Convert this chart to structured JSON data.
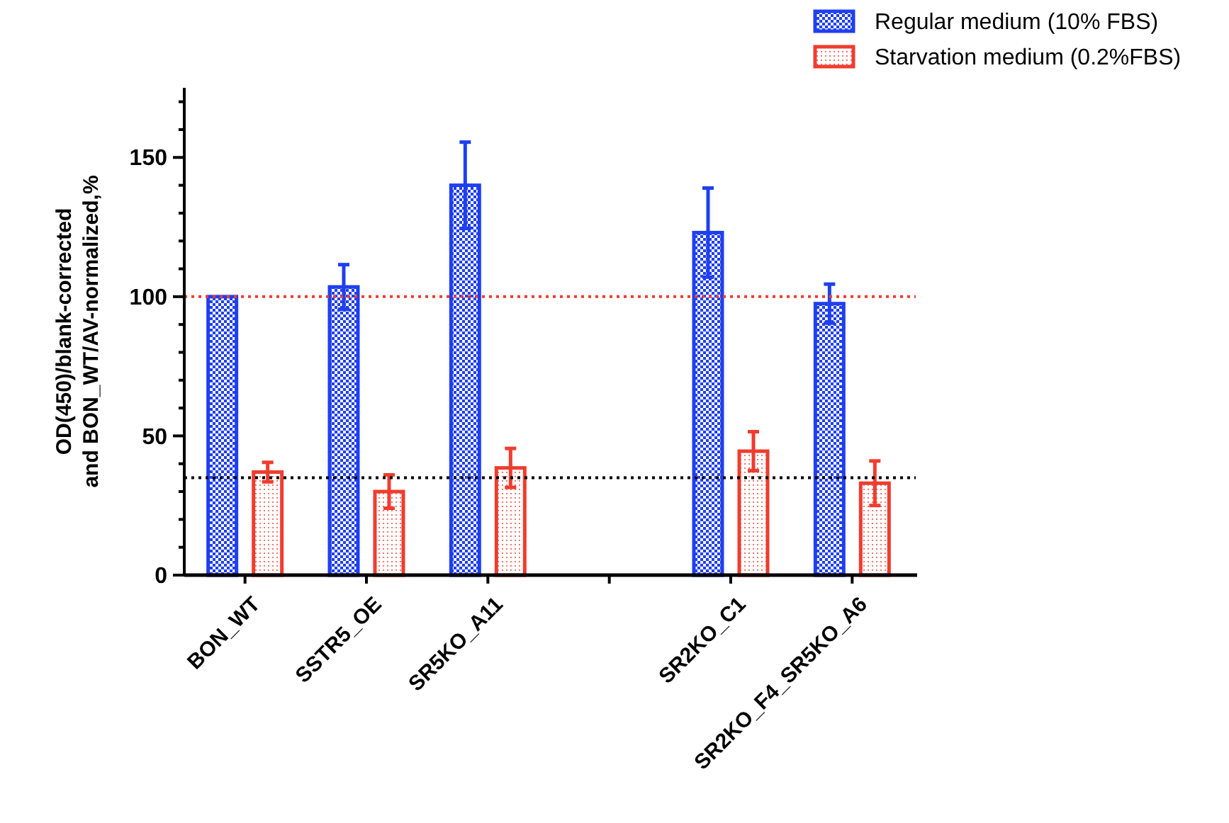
{
  "chart_data": {
    "type": "bar",
    "ylabel": "OD(450)/blank-corrected\nand BON_WT/AV-normalized,%",
    "categories": [
      "BON_WT",
      "SSTR5_OE",
      "SR5KO_A11",
      null,
      "SR2KO_C1",
      "SR2KO_F4_SR5KO_A6"
    ],
    "series": [
      {
        "name": "Regular medium (10% FBS)",
        "color": "#1f3ff0",
        "values": [
          100,
          103.5,
          140,
          null,
          123,
          97.5
        ],
        "errors": [
          null,
          8,
          15.5,
          null,
          16,
          7
        ]
      },
      {
        "name": "Starvation medium (0.2%FBS)",
        "color": "#f03c2e",
        "values": [
          37,
          30,
          38.5,
          null,
          44.5,
          33
        ],
        "errors": [
          3.5,
          6,
          7,
          null,
          7,
          8
        ]
      }
    ],
    "ylim": [
      0,
      175
    ],
    "yticks": [
      0,
      {
        "value": 10,
        "label": null
      },
      {
        "value": 20,
        "label": null
      },
      {
        "value": 30,
        "label": null
      },
      {
        "value": 40,
        "label": null
      },
      50,
      {
        "value": 60,
        "label": null
      },
      {
        "value": 70,
        "label": null
      },
      {
        "value": 80,
        "label": null
      },
      {
        "value": 90,
        "label": null
      },
      100,
      {
        "value": 110,
        "label": null
      },
      {
        "value": 120,
        "label": null
      },
      {
        "value": 130,
        "label": null
      },
      {
        "value": 140,
        "label": null
      },
      150,
      {
        "value": 160,
        "label": null
      },
      {
        "value": 170,
        "label": null
      }
    ],
    "ref_lines": [
      {
        "axis": "y",
        "value": 100,
        "color": "#f03c2e",
        "line_style": "dotted"
      },
      {
        "axis": "y",
        "value": 35,
        "color": "#000000",
        "line_style": "dotted"
      }
    ],
    "grid": false,
    "legend": "top right"
  }
}
